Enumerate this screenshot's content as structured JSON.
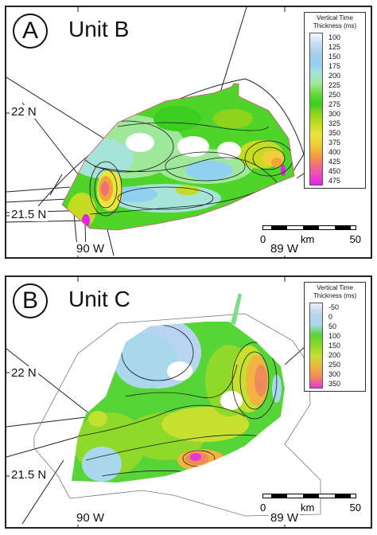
{
  "panels": [
    {
      "letter": "A",
      "title": "Unit B",
      "latitude_labels": [
        "22 N",
        "21.5 N"
      ],
      "longitude_labels": [
        "90 W",
        "89 W"
      ],
      "legend": {
        "title": "Vertical Time Thickness (ms)",
        "labels": [
          "100",
          "125",
          "150",
          "175",
          "200",
          "225",
          "250",
          "275",
          "300",
          "325",
          "350",
          "375",
          "400",
          "425",
          "450",
          "475"
        ],
        "colors": [
          "#f4f7ff",
          "#c8def5",
          "#a8cdea",
          "#90d0f0",
          "#a6e3d8",
          "#9fe89a",
          "#66d93a",
          "#3ccd21",
          "#8fd41c",
          "#c5dc22",
          "#e8e63a",
          "#f0cd3a",
          "#f2a33a",
          "#f07272",
          "#ec4dbe",
          "#e022ea"
        ]
      },
      "scale": {
        "start": "0",
        "unit": "km",
        "end": "50"
      }
    },
    {
      "letter": "B",
      "title": "Unit C",
      "latitude_labels": [
        "22 N",
        "21.5 N"
      ],
      "longitude_labels": [
        "90 W",
        "89 W"
      ],
      "legend": {
        "title": "Vertical Time Thickness (ms)",
        "labels": [
          "-50",
          "0",
          "50",
          "100",
          "150",
          "200",
          "250",
          "300",
          "350"
        ],
        "colors": [
          "#f4eef8",
          "#b9d4f0",
          "#a9d8ec",
          "#57d438",
          "#8ed92a",
          "#c6e030",
          "#f2b342",
          "#ef8a5a",
          "#ea33dc"
        ]
      },
      "scale": {
        "start": "0",
        "unit": "km",
        "end": "50"
      }
    }
  ]
}
